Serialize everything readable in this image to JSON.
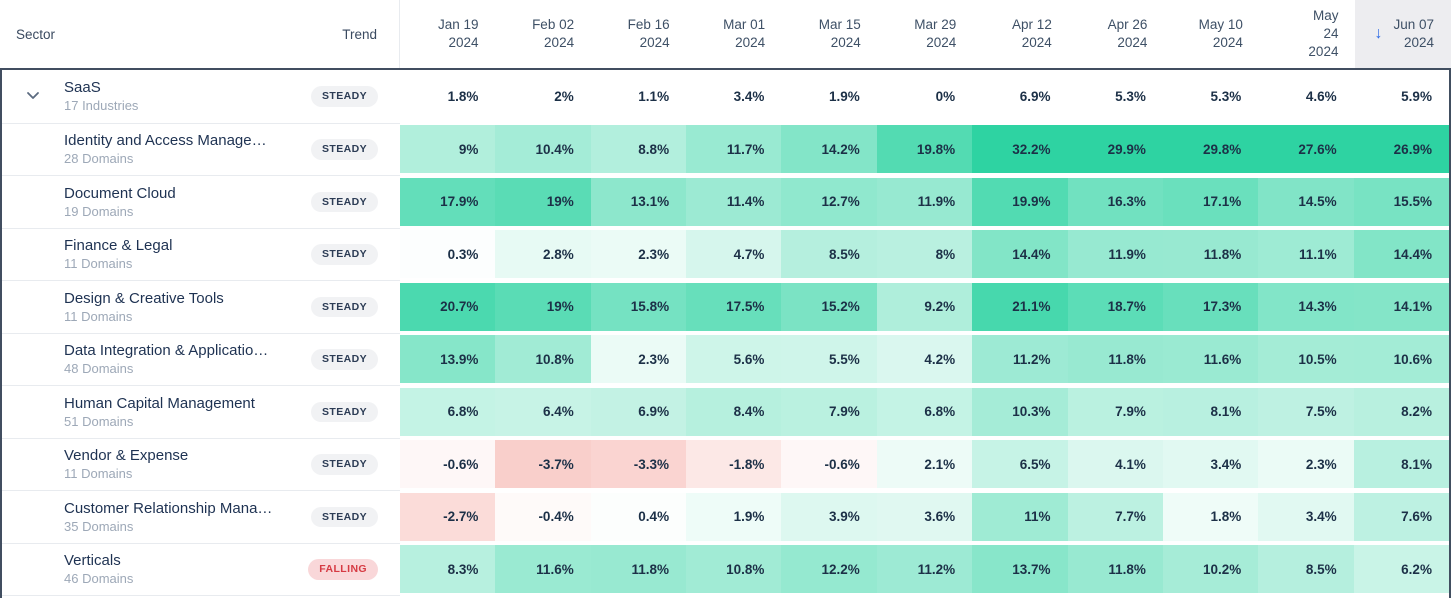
{
  "table": {
    "sector_header": "Sector",
    "trend_header": "Trend",
    "sort_icon": "↓"
  },
  "chart_data": {
    "type": "heatmap",
    "unit": "%",
    "legend": "green = positive growth, pink = negative growth, sorted column Jun 07 2024",
    "color_scale": {
      "positive_color": "#2ed3a2",
      "positive_max": 24,
      "negative_color": "#f7beb9",
      "negative_max": 5,
      "zero_color": "#ffffff"
    },
    "columns": [
      {
        "lines": [
          "Jan 19",
          "2024"
        ],
        "sorted": false
      },
      {
        "lines": [
          "Feb 02",
          "2024"
        ],
        "sorted": false
      },
      {
        "lines": [
          "Feb 16",
          "2024"
        ],
        "sorted": false
      },
      {
        "lines": [
          "Mar 01",
          "2024"
        ],
        "sorted": false
      },
      {
        "lines": [
          "Mar 15",
          "2024"
        ],
        "sorted": false
      },
      {
        "lines": [
          "Mar 29",
          "2024"
        ],
        "sorted": false
      },
      {
        "lines": [
          "Apr 12",
          "2024"
        ],
        "sorted": false
      },
      {
        "lines": [
          "Apr 26",
          "2024"
        ],
        "sorted": false
      },
      {
        "lines": [
          "May 10",
          "2024"
        ],
        "sorted": false
      },
      {
        "lines": [
          "May",
          "24",
          "2024"
        ],
        "sorted": false
      },
      {
        "lines": [
          "Jun 07",
          "2024"
        ],
        "sorted": true
      }
    ],
    "rows": [
      {
        "name": "SaaS",
        "subtitle": "17 Industries",
        "trend": "STEADY",
        "parent": true,
        "expanded": true,
        "labels": [
          "1.8%",
          "2%",
          "1.1%",
          "3.4%",
          "1.9%",
          "0%",
          "6.9%",
          "5.3%",
          "5.3%",
          "4.6%",
          "5.9%"
        ]
      },
      {
        "name": "Identity and Access Manage…",
        "subtitle": "28 Domains",
        "trend": "STEADY",
        "parent": false,
        "labels": [
          "9%",
          "10.4%",
          "8.8%",
          "11.7%",
          "14.2%",
          "19.8%",
          "32.2%",
          "29.9%",
          "29.8%",
          "27.6%",
          "26.9%"
        ]
      },
      {
        "name": "Document Cloud",
        "subtitle": "19 Domains",
        "trend": "STEADY",
        "parent": false,
        "labels": [
          "17.9%",
          "19%",
          "13.1%",
          "11.4%",
          "12.7%",
          "11.9%",
          "19.9%",
          "16.3%",
          "17.1%",
          "14.5%",
          "15.5%"
        ]
      },
      {
        "name": "Finance & Legal",
        "subtitle": "11 Domains",
        "trend": "STEADY",
        "parent": false,
        "labels": [
          "0.3%",
          "2.8%",
          "2.3%",
          "4.7%",
          "8.5%",
          "8%",
          "14.4%",
          "11.9%",
          "11.8%",
          "11.1%",
          "14.4%"
        ]
      },
      {
        "name": "Design & Creative Tools",
        "subtitle": "11 Domains",
        "trend": "STEADY",
        "parent": false,
        "labels": [
          "20.7%",
          "19%",
          "15.8%",
          "17.5%",
          "15.2%",
          "9.2%",
          "21.1%",
          "18.7%",
          "17.3%",
          "14.3%",
          "14.1%"
        ]
      },
      {
        "name": "Data Integration & Applicatio…",
        "subtitle": "48 Domains",
        "trend": "STEADY",
        "parent": false,
        "labels": [
          "13.9%",
          "10.8%",
          "2.3%",
          "5.6%",
          "5.5%",
          "4.2%",
          "11.2%",
          "11.8%",
          "11.6%",
          "10.5%",
          "10.6%"
        ]
      },
      {
        "name": "Human Capital Management",
        "subtitle": "51 Domains",
        "trend": "STEADY",
        "parent": false,
        "labels": [
          "6.8%",
          "6.4%",
          "6.9%",
          "8.4%",
          "7.9%",
          "6.8%",
          "10.3%",
          "7.9%",
          "8.1%",
          "7.5%",
          "8.2%"
        ]
      },
      {
        "name": "Vendor & Expense",
        "subtitle": "11 Domains",
        "trend": "STEADY",
        "parent": false,
        "labels": [
          "-0.6%",
          "-3.7%",
          "-3.3%",
          "-1.8%",
          "-0.6%",
          "2.1%",
          "6.5%",
          "4.1%",
          "3.4%",
          "2.3%",
          "8.1%"
        ]
      },
      {
        "name": "Customer Relationship Mana…",
        "subtitle": "35 Domains",
        "trend": "STEADY",
        "parent": false,
        "labels": [
          "-2.7%",
          "-0.4%",
          "0.4%",
          "1.9%",
          "3.9%",
          "3.6%",
          "11%",
          "7.7%",
          "1.8%",
          "3.4%",
          "7.6%"
        ]
      },
      {
        "name": "Verticals",
        "subtitle": "46 Domains",
        "trend": "FALLING",
        "parent": false,
        "labels": [
          "8.3%",
          "11.6%",
          "11.8%",
          "10.8%",
          "12.2%",
          "11.2%",
          "13.7%",
          "11.8%",
          "10.2%",
          "8.5%",
          "6.2%"
        ]
      }
    ],
    "partial_bottom_row_colors": [
      "#fdf3f2",
      "#fbe9e8",
      "#fefdfd",
      "#fefbfb",
      "#fbe9e8",
      "#f4b1ac",
      "#fdf3f2",
      "#fefefe",
      "#fefefe",
      "#fdf7f6",
      "#f6fcfa"
    ]
  },
  "colors": {
    "accent_green": "#2ed3a2",
    "negative_pink": "#f7beb9",
    "sorted_header_bg": "#ededf0",
    "sort_arrow_blue": "#2e6be6",
    "outline": "#414e60",
    "steady_badge_bg": "#f1f2f4",
    "steady_badge_text": "#2c3c55",
    "falling_badge_bg": "#f9d7d9",
    "falling_badge_text": "#d63a43"
  }
}
